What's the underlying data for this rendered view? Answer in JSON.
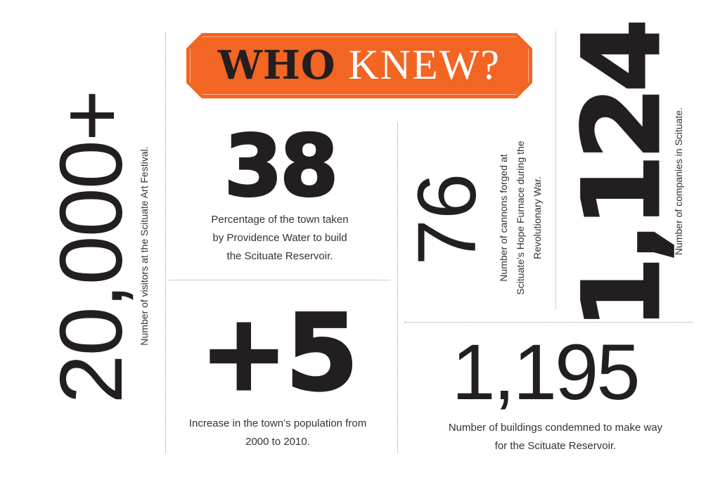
{
  "banner": {
    "bold_word": "WHO",
    "light_word": "KNEW?",
    "color": "#f26522"
  },
  "facts": [
    {
      "number": "20,000+",
      "caption": "Number of visitors at the Scituate Art Festival."
    },
    {
      "number": "38",
      "caption_lines": [
        "Percentage of the town taken",
        "by Providence Water to build",
        "the Scituate Reservoir."
      ]
    },
    {
      "number": "+5",
      "caption_lines": [
        "Increase in the town’s population from",
        "2000 to 2010."
      ]
    },
    {
      "number": "76",
      "caption_lines": [
        "Number of cannons forged at",
        "Scituate’s Hope Furnace during the",
        "Revolutionary War."
      ]
    },
    {
      "number": "1,124",
      "caption": "Number of companies in Scituate."
    },
    {
      "number": "1,195",
      "caption_lines": [
        "Number of buildings condemned to make way",
        "for the Scituate Reservoir."
      ]
    }
  ]
}
